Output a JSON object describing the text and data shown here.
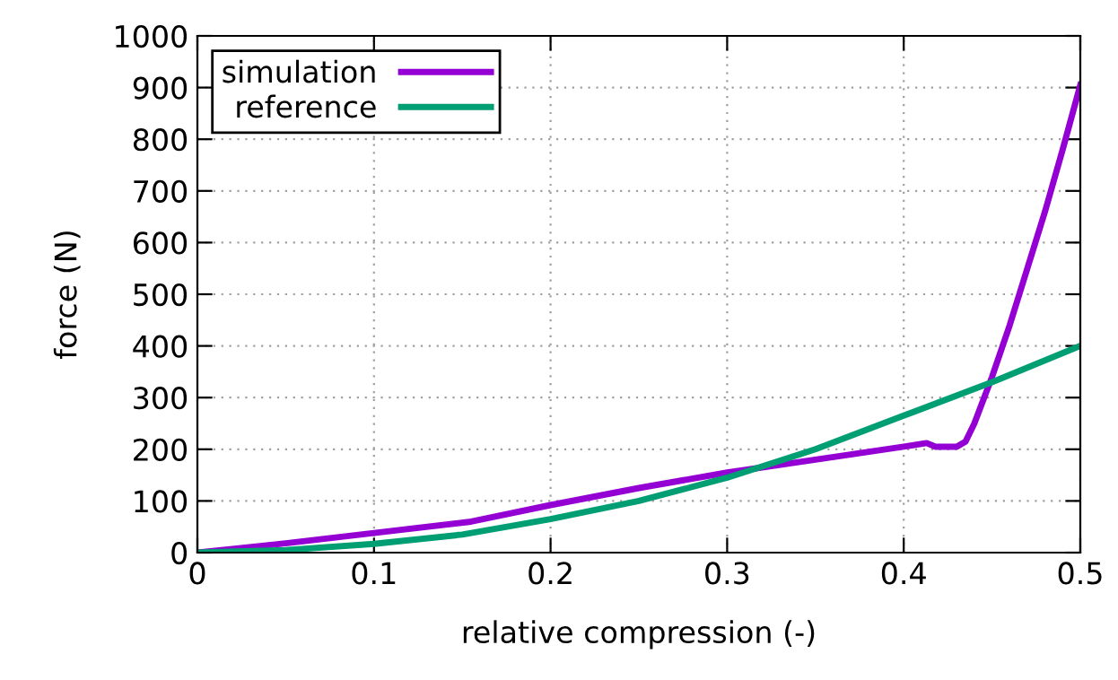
{
  "chart_data": {
    "type": "line",
    "xlabel": "relative compression (-)",
    "ylabel": "force (N)",
    "series": [
      {
        "name": "simulation",
        "color": "#9400d3",
        "x": [
          0,
          0.05,
          0.1,
          0.155,
          0.2,
          0.25,
          0.3,
          0.35,
          0.4,
          0.413,
          0.418,
          0.43,
          0.435,
          0.44,
          0.45,
          0.46,
          0.47,
          0.48,
          0.49,
          0.5
        ],
        "values": [
          0,
          18,
          38,
          60,
          92,
          125,
          155,
          180,
          205,
          212,
          205,
          205,
          215,
          250,
          340,
          440,
          550,
          660,
          780,
          905
        ]
      },
      {
        "name": "reference",
        "color": "#009e73",
        "x": [
          0,
          0.05,
          0.1,
          0.15,
          0.2,
          0.25,
          0.3,
          0.35,
          0.4,
          0.45,
          0.5
        ],
        "values": [
          0,
          5,
          17,
          35,
          65,
          100,
          145,
          200,
          265,
          330,
          400
        ]
      }
    ],
    "xlim": [
      0,
      0.5
    ],
    "xticks": [
      0,
      0.1,
      0.2,
      0.3,
      0.4,
      0.5
    ],
    "ylim": [
      0,
      1000
    ],
    "yticks": [
      0,
      100,
      200,
      300,
      400,
      500,
      600,
      700,
      800,
      900,
      1000
    ],
    "grid": true,
    "legend": "top left",
    "line_style": "solid"
  }
}
